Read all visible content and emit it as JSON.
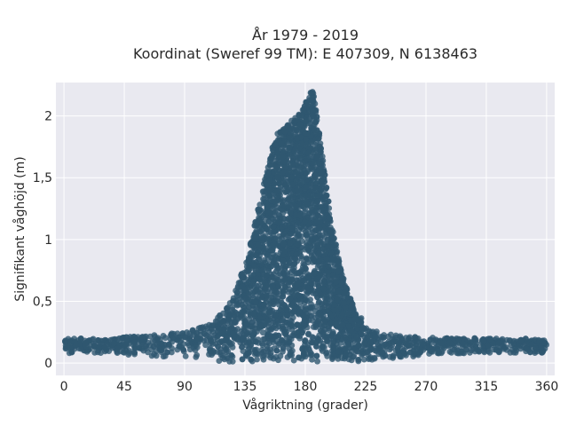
{
  "chart_data": {
    "type": "scatter",
    "title_lines": [
      "År 1979 - 2019",
      "Koordinat (Sweref 99 TM): E 407309, N 6138463"
    ],
    "xlabel": "Vågriktning (grader)",
    "ylabel": "Signifikant våghöjd (m)",
    "xlim": [
      -6,
      366
    ],
    "ylim": [
      -0.1,
      2.27
    ],
    "xticks": [
      0,
      45,
      90,
      135,
      180,
      225,
      270,
      315,
      360
    ],
    "xtick_labels": [
      "0",
      "45",
      "90",
      "135",
      "180",
      "225",
      "270",
      "315",
      "360"
    ],
    "yticks": [
      0,
      0.5,
      1,
      1.5,
      2
    ],
    "ytick_labels": [
      "0",
      "0,5",
      "1",
      "1,5",
      "2"
    ],
    "grid": true,
    "marker_color": "#2f5870",
    "background_color": "#e9e9f0",
    "envelope": {
      "x": [
        0,
        30,
        60,
        90,
        110,
        125,
        135,
        145,
        152,
        158,
        165,
        172,
        178,
        182,
        186,
        190,
        195,
        200,
        208,
        215,
        225,
        235,
        250,
        270,
        300,
        330,
        360
      ],
      "ymin": [
        0.08,
        0.08,
        0.06,
        0.04,
        0.02,
        0.01,
        0.01,
        0.01,
        0.01,
        0.01,
        0.01,
        0.01,
        0.01,
        0.01,
        0.01,
        0.01,
        0.01,
        0.01,
        0.01,
        0.01,
        0.01,
        0.02,
        0.04,
        0.06,
        0.08,
        0.08,
        0.08
      ],
      "ymax": [
        0.2,
        0.2,
        0.22,
        0.25,
        0.32,
        0.5,
        0.8,
        1.25,
        1.6,
        1.85,
        1.9,
        2.0,
        2.05,
        2.18,
        2.2,
        1.9,
        1.5,
        1.1,
        0.7,
        0.48,
        0.32,
        0.25,
        0.22,
        0.21,
        0.2,
        0.2,
        0.2
      ]
    }
  }
}
